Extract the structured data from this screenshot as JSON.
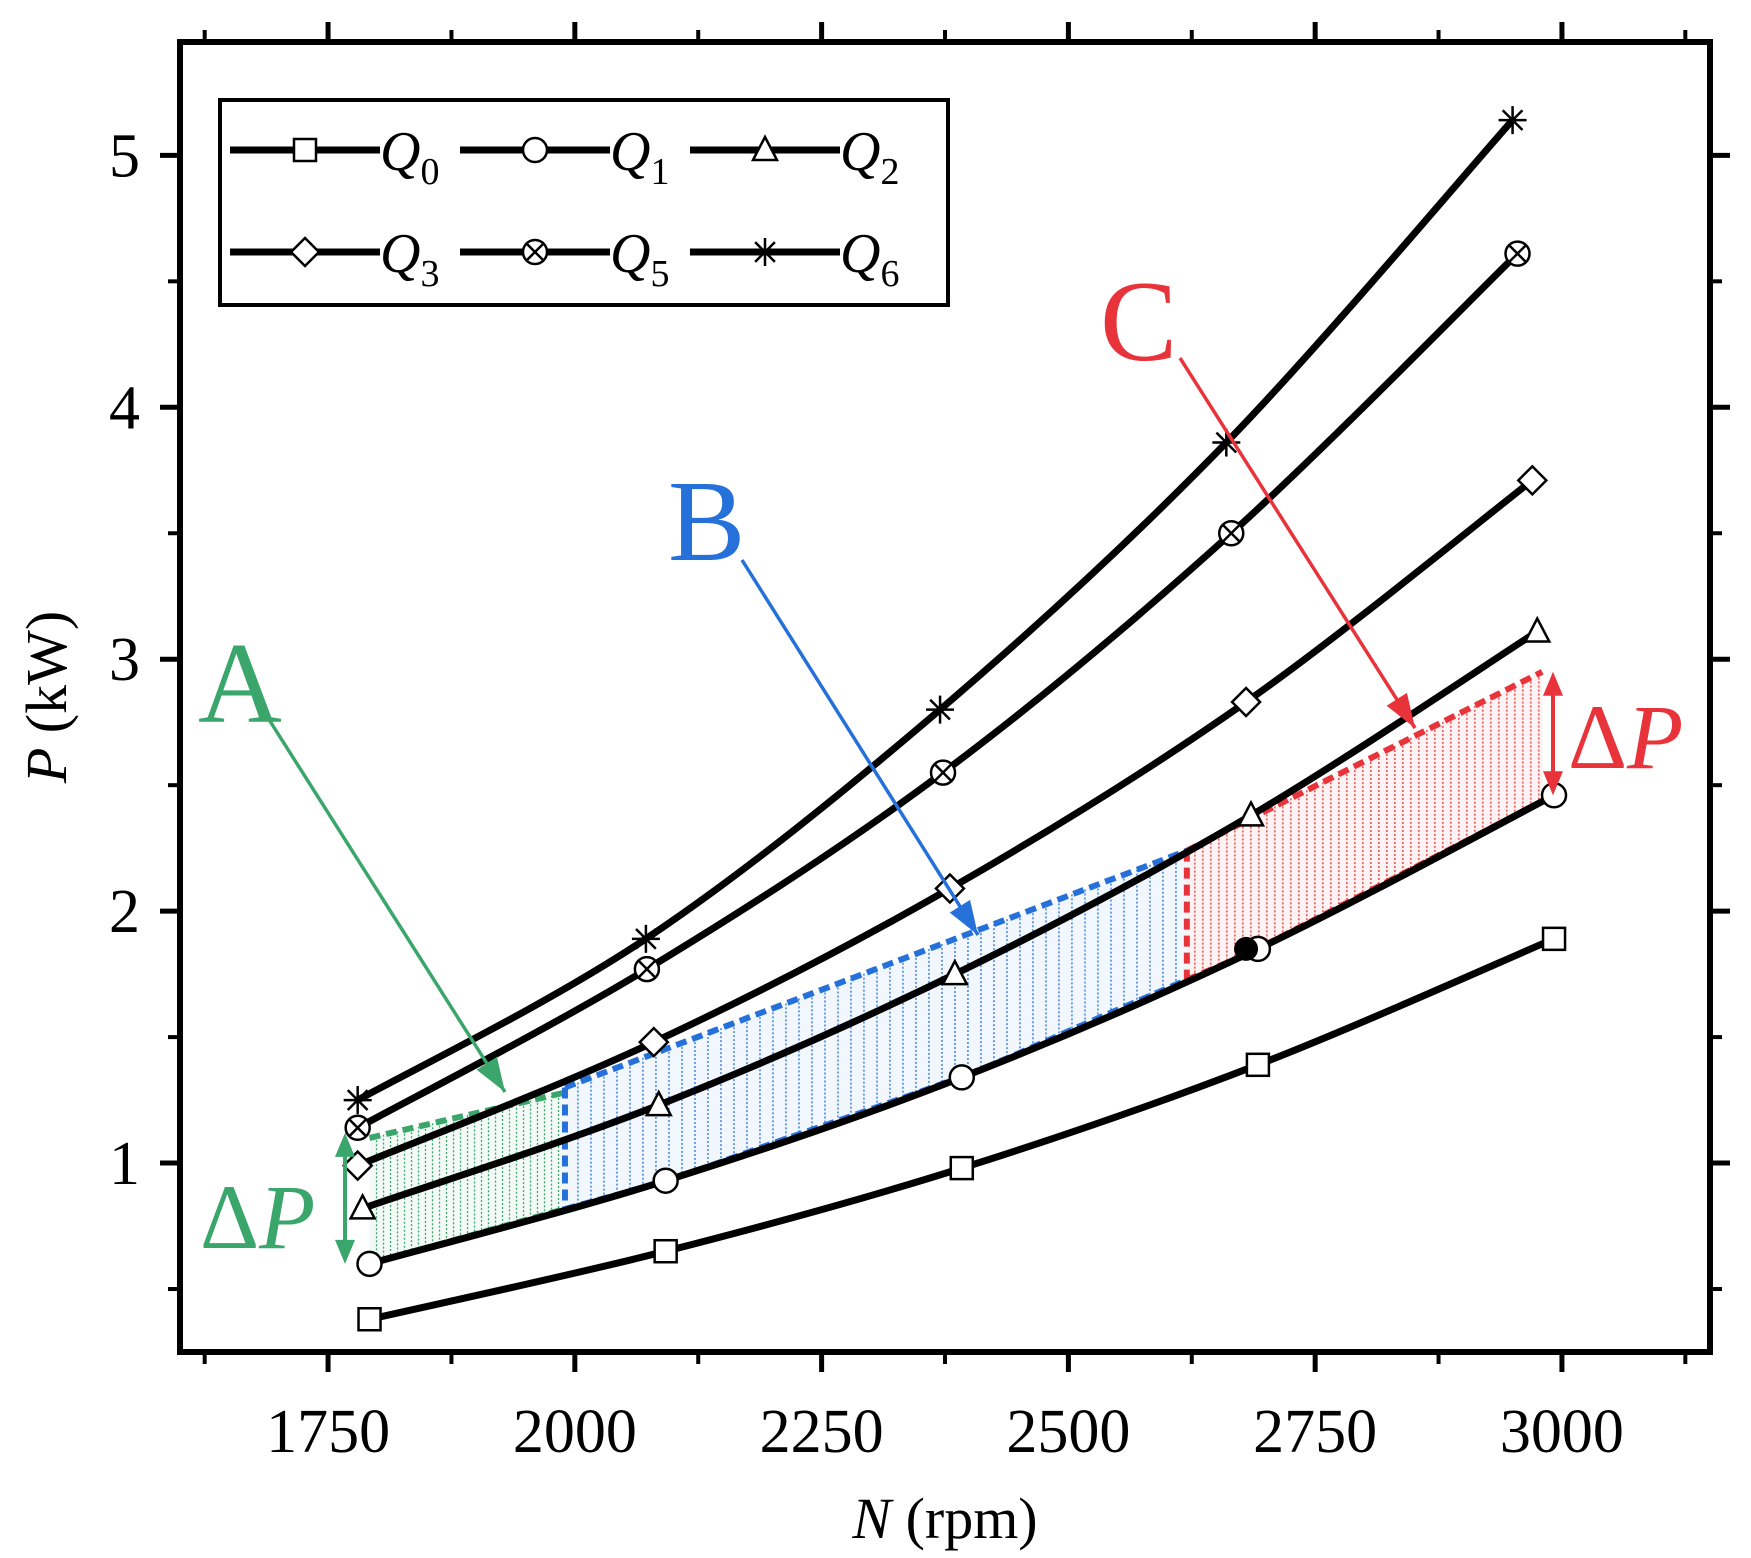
{
  "chart_data": {
    "type": "line",
    "xlabel": "N (rpm)",
    "ylabel": "P (kW)",
    "xlabel_var": "N",
    "xlabel_unit": "(rpm)",
    "ylabel_var": "P",
    "ylabel_unit": "(kW)",
    "xlim": [
      1600,
      3150
    ],
    "ylim": [
      0.25,
      5.45
    ],
    "x_ticks": [
      1750,
      2000,
      2250,
      2500,
      2750,
      3000
    ],
    "x_tick_labels": [
      "1750",
      "2000",
      "2250",
      "2500",
      "2750",
      "3000"
    ],
    "x_minor_ticks": [
      1625,
      1875,
      2125,
      2375,
      2625,
      2875,
      3125
    ],
    "y_ticks": [
      1,
      2,
      3,
      4,
      5
    ],
    "y_tick_labels": [
      "1",
      "2",
      "3",
      "4",
      "5"
    ],
    "y_minor_ticks": [
      0.5,
      1.5,
      2.5,
      3.5,
      4.5
    ],
    "grid": false,
    "legend_position": "top-left",
    "series": [
      {
        "name": "Q0",
        "sub": "0",
        "marker": "square",
        "x": [
          1792,
          2092,
          2392,
          2692,
          2992
        ],
        "y": [
          0.38,
          0.65,
          0.98,
          1.39,
          1.89
        ]
      },
      {
        "name": "Q1",
        "sub": "1",
        "marker": "circle",
        "x": [
          1792,
          2092,
          2392,
          2692,
          2992
        ],
        "y": [
          0.6,
          0.93,
          1.34,
          1.85,
          2.46
        ]
      },
      {
        "name": "Q2",
        "sub": "2",
        "marker": "triangle",
        "x": [
          1785,
          2085,
          2385,
          2685,
          2975
        ],
        "y": [
          0.82,
          1.23,
          1.75,
          2.38,
          3.11
        ]
      },
      {
        "name": "Q3",
        "sub": "3",
        "marker": "diamond",
        "x": [
          1780,
          2080,
          2380,
          2680,
          2970
        ],
        "y": [
          0.99,
          1.48,
          2.09,
          2.83,
          3.71
        ]
      },
      {
        "name": "Q5",
        "sub": "5",
        "marker": "circle-x",
        "x": [
          1780,
          2073,
          2373,
          2665,
          2955
        ],
        "y": [
          1.14,
          1.77,
          2.55,
          3.5,
          4.61
        ]
      },
      {
        "name": "Q6",
        "sub": "6",
        "marker": "star",
        "x": [
          1780,
          2072,
          2370,
          2660,
          2950
        ],
        "y": [
          1.25,
          1.89,
          2.8,
          3.86,
          5.14
        ]
      }
    ],
    "annotations": [
      {
        "label": "A",
        "color": "#3aa66b",
        "region_x": [
          1792,
          1990
        ],
        "dp_label": "ΔP"
      },
      {
        "label": "B",
        "color": "#2571d9",
        "region_x": [
          1990,
          2620
        ]
      },
      {
        "label": "C",
        "color": "#e8333a",
        "region_x": [
          2620,
          2980
        ],
        "dp_label": "ΔP"
      }
    ]
  }
}
